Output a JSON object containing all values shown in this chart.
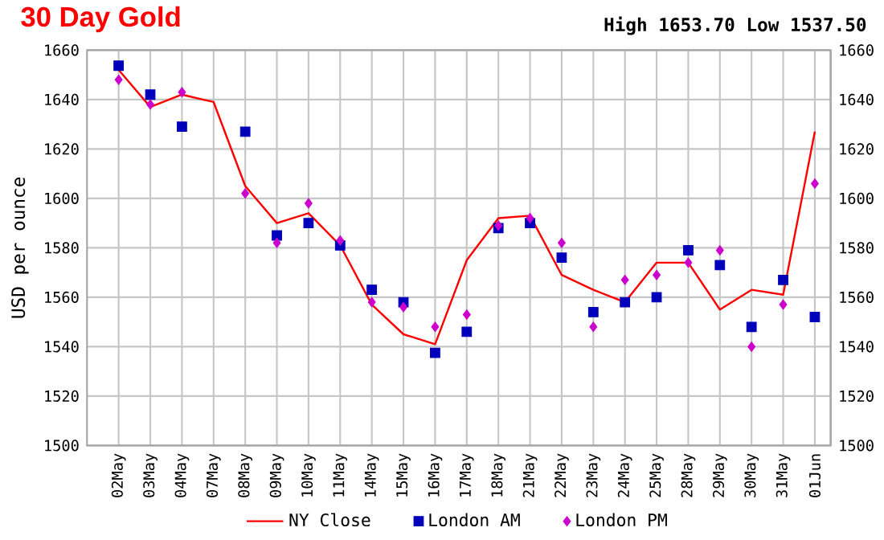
{
  "chart_data": {
    "type": "line",
    "title": "30 Day Gold",
    "subtitle": "High 1653.70 Low 1537.50",
    "ylabel": "USD per ounce",
    "categories": [
      "02May",
      "03May",
      "04May",
      "07May",
      "08May",
      "09May",
      "10May",
      "11May",
      "14May",
      "15May",
      "16May",
      "17May",
      "18May",
      "21May",
      "22May",
      "23May",
      "24May",
      "25May",
      "28May",
      "29May",
      "30May",
      "31May",
      "01Jun"
    ],
    "series": [
      {
        "name": "NY Close",
        "type": "line",
        "color": "#ff0000",
        "marker": "none",
        "values": [
          1652,
          1637,
          1642,
          1639,
          1605,
          1590,
          1594,
          1581,
          1557,
          1545,
          1541,
          1575,
          1592,
          1593,
          1569,
          1563,
          1558,
          1574,
          1574,
          1555,
          1563,
          1561,
          1627
        ]
      },
      {
        "name": "London AM",
        "type": "scatter",
        "color": "#0000bb",
        "marker": "square",
        "values": [
          1653.7,
          1642,
          1629,
          null,
          1627,
          1585,
          1590,
          1581,
          1563,
          1558,
          1537.5,
          1546,
          1588,
          1590,
          1576,
          1554,
          1558,
          1560,
          1579,
          1573,
          1548,
          1567,
          1552
        ]
      },
      {
        "name": "London PM",
        "type": "scatter",
        "color": "#cc00cc",
        "marker": "diamond",
        "values": [
          1648,
          1638,
          1643,
          null,
          1602,
          1582,
          1598,
          1583,
          1558,
          1556,
          1548,
          1553,
          1589,
          1592,
          1582,
          1548,
          1567,
          1569,
          1574,
          1579,
          1540,
          1557,
          1606
        ]
      }
    ],
    "ylim": [
      1500,
      1660
    ],
    "yticks": [
      1500,
      1520,
      1540,
      1560,
      1580,
      1600,
      1620,
      1640,
      1660
    ],
    "y2lim": [
      1500,
      1660
    ],
    "y2ticks": [
      1500,
      1520,
      1540,
      1560,
      1580,
      1600,
      1620,
      1640,
      1660
    ],
    "grid": true,
    "legend": "bottom"
  }
}
